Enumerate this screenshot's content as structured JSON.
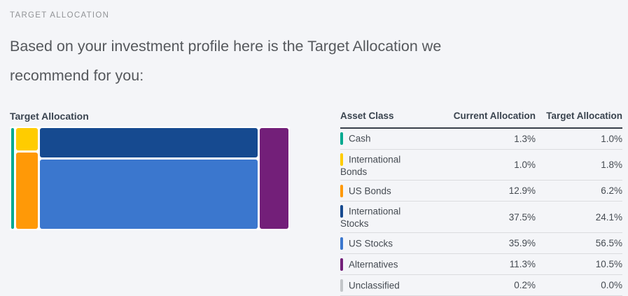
{
  "header": {
    "eyebrow": "TARGET ALLOCATION",
    "heading_lines": [
      "Based on your investment profile here is the Target Allocation we",
      "recommend for you:"
    ]
  },
  "chart": {
    "title": "Target Allocation"
  },
  "table": {
    "columns": [
      "Asset Class",
      "Current Allocation",
      "Target Allocation"
    ]
  },
  "chart_data": {
    "type": "treemap",
    "title": "Target Allocation",
    "value_unit": "%",
    "items": [
      {
        "label": "Cash",
        "current": 1.3,
        "target": 1.0,
        "color": "#00A98F"
      },
      {
        "label": "International Bonds",
        "current": 1.0,
        "target": 1.8,
        "color": "#FFCC00"
      },
      {
        "label": "US Bonds",
        "current": 12.9,
        "target": 6.2,
        "color": "#FF9907"
      },
      {
        "label": "International Stocks",
        "current": 37.5,
        "target": 24.1,
        "color": "#164A90"
      },
      {
        "label": "US Stocks",
        "current": 35.9,
        "target": 56.5,
        "color": "#3B77CE"
      },
      {
        "label": "Alternatives",
        "current": 11.3,
        "target": 10.5,
        "color": "#731F79"
      },
      {
        "label": "Unclassified",
        "current": 0.2,
        "target": 0.0,
        "color": "#C3C6C9"
      }
    ],
    "treemap_columns": [
      {
        "segments": [
          "Cash"
        ]
      },
      {
        "segments": [
          "International Bonds",
          "US Bonds"
        ]
      },
      {
        "segments": [
          "International Stocks",
          "US Stocks"
        ]
      },
      {
        "segments": [
          "Alternatives"
        ]
      }
    ]
  }
}
